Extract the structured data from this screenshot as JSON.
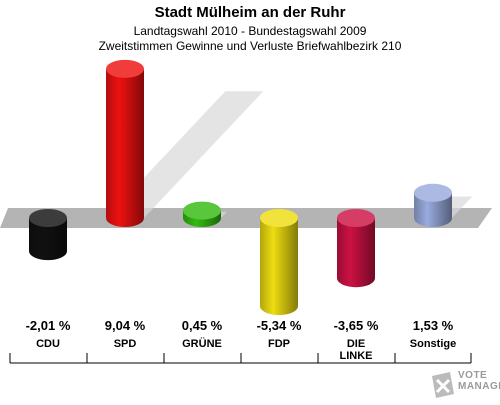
{
  "header": {
    "title": "Stadt Mülheim an der Ruhr",
    "subtitle1": "Landtagswahl 2010 - Bundestagswahl 2009",
    "subtitle2": "Zweitstimmen Gewinne und Verluste Briefwahlbezirk 210"
  },
  "chart_data": {
    "type": "bar",
    "categories": [
      "CDU",
      "SPD",
      "GRÜNE",
      "FDP",
      "DIE LINKE",
      "Sonstige"
    ],
    "category_lines": [
      [
        "CDU"
      ],
      [
        "SPD"
      ],
      [
        "GRÜNE"
      ],
      [
        "FDP"
      ],
      [
        "DIE",
        "LINKE"
      ],
      [
        "Sonstige"
      ]
    ],
    "values": [
      -2.01,
      9.04,
      0.45,
      -5.34,
      -3.65,
      1.53
    ],
    "value_labels": [
      "-2,01 %",
      "9,04 %",
      "0,45 %",
      "-5,34 %",
      "-3,65 %",
      "1,53 %"
    ],
    "colors": [
      "#111111",
      "#ee1111",
      "#33bb11",
      "#eedd11",
      "#cc1144",
      "#99aadd"
    ],
    "title": "Stadt Mülheim an der Ruhr",
    "subtitle": "Zweitstimmen Gewinne und Verluste Briefwahlbezirk 210",
    "ylim": [
      -9.5,
      9.5
    ],
    "grid": false,
    "legend": "none"
  },
  "logo": {
    "icon": "ballot-x-icon",
    "line1": "VOTE",
    "line2": "MANAGER"
  }
}
